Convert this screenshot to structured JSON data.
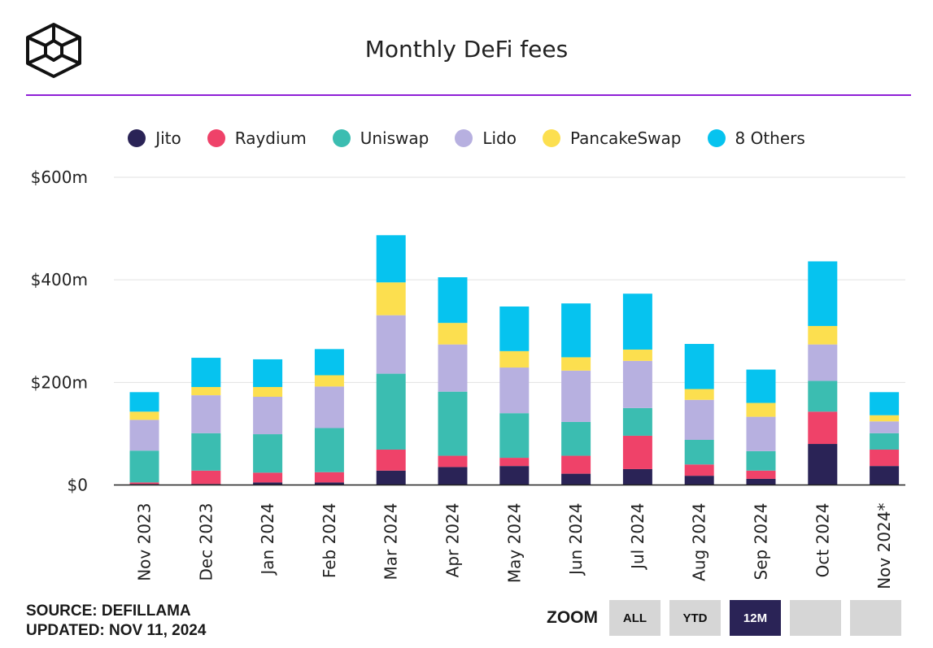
{
  "header": {
    "title": "Monthly DeFi fees"
  },
  "legend": [
    {
      "label": "Jito",
      "color": "#2a2356"
    },
    {
      "label": "Raydium",
      "color": "#ef4269"
    },
    {
      "label": "Uniswap",
      "color": "#3bbdb1"
    },
    {
      "label": "Lido",
      "color": "#b7b0e0"
    },
    {
      "label": "PancakeSwap",
      "color": "#fcdf4f"
    },
    {
      "label": "8 Others",
      "color": "#06c3ef"
    }
  ],
  "chart_data": {
    "type": "bar",
    "stacked": true,
    "categories": [
      "Nov 2023",
      "Dec 2023",
      "Jan 2024",
      "Feb 2024",
      "Mar 2024",
      "Apr 2024",
      "May 2024",
      "Jun 2024",
      "Jul 2024",
      "Aug 2024",
      "Sep 2024",
      "Oct 2024",
      "Nov 2024*"
    ],
    "series": [
      {
        "name": "Jito",
        "color": "#2a2356",
        "values": [
          2,
          2,
          5,
          5,
          28,
          35,
          37,
          22,
          31,
          18,
          12,
          80,
          37
        ]
      },
      {
        "name": "Raydium",
        "color": "#ef4269",
        "values": [
          3,
          26,
          19,
          20,
          41,
          22,
          16,
          35,
          65,
          22,
          16,
          63,
          32
        ]
      },
      {
        "name": "Uniswap",
        "color": "#3bbdb1",
        "values": [
          62,
          73,
          75,
          86,
          148,
          125,
          87,
          66,
          54,
          48,
          38,
          60,
          32
        ]
      },
      {
        "name": "Lido",
        "color": "#b7b0e0",
        "values": [
          60,
          74,
          73,
          81,
          114,
          92,
          89,
          100,
          92,
          78,
          67,
          71,
          23
        ]
      },
      {
        "name": "PancakeSwap",
        "color": "#fcdf4f",
        "values": [
          16,
          16,
          19,
          22,
          64,
          42,
          32,
          26,
          22,
          21,
          27,
          36,
          12
        ]
      },
      {
        "name": "8 Others",
        "color": "#06c3ef",
        "values": [
          38,
          57,
          54,
          51,
          92,
          89,
          87,
          105,
          109,
          88,
          65,
          126,
          45
        ]
      }
    ],
    "y_ticks": [
      0,
      200,
      400,
      600
    ],
    "y_tick_labels": [
      "$0",
      "$200m",
      "$400m",
      "$600m"
    ],
    "ylim": [
      0,
      600
    ],
    "legend_position": "top",
    "grid": true
  },
  "footer": {
    "source": "SOURCE: DEFILLAMA",
    "updated": "UPDATED: NOV 11, 2024"
  },
  "zoom": {
    "label": "ZOOM",
    "buttons": [
      "ALL",
      "YTD",
      "12M",
      "",
      ""
    ],
    "active": "12M"
  }
}
